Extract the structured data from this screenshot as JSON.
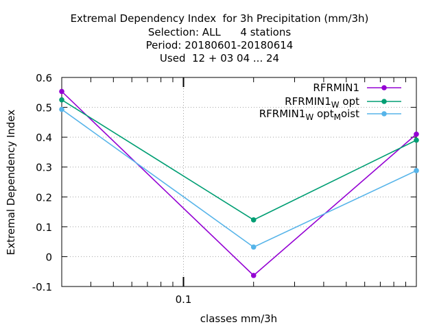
{
  "chart_data": {
    "type": "line",
    "title_lines": [
      "Extremal Dependency Index  for 3h Precipitation (mm/3h)",
      "Selection: ALL      4 stations",
      "Period: 20180601-20180614",
      "Used  12 + 03 04 ... 24"
    ],
    "xlabel": "classes mm/3h",
    "ylabel": "Extremal Dependency Index",
    "x_scale": "log",
    "x": [
      0.03,
      0.2,
      1.0
    ],
    "x_tick_labels": [
      "0.1"
    ],
    "xlim": [
      0.03,
      1.0
    ],
    "ylim": [
      -0.1,
      0.6
    ],
    "y_ticks": [
      -0.1,
      0,
      0.1,
      0.2,
      0.3,
      0.4,
      0.5,
      0.6
    ],
    "y_tick_labels": [
      "-0.1",
      "0",
      "0.1",
      "0.2",
      "0.3",
      "0.4",
      "0.5",
      "0.6"
    ],
    "grid": true,
    "legend_position": "top-right",
    "series": [
      {
        "name": "RFRMIN1",
        "legend_parts": [
          [
            "RFRMIN1",
            ""
          ]
        ],
        "color": "#9400d3",
        "values": [
          0.553,
          -0.063,
          0.41
        ]
      },
      {
        "name": "RFRMIN1_W opt",
        "legend_parts": [
          [
            "RFRMIN1",
            ""
          ],
          [
            "W",
            "sub"
          ],
          [
            " opt",
            ""
          ]
        ],
        "color": "#009e73",
        "values": [
          0.525,
          0.123,
          0.39
        ]
      },
      {
        "name": "RFRMIN1_W opt_M oist",
        "legend_parts": [
          [
            "RFRMIN1",
            ""
          ],
          [
            "W",
            "sub"
          ],
          [
            " opt",
            ""
          ],
          [
            "M",
            "sub"
          ],
          [
            "oist",
            ""
          ]
        ],
        "color": "#56b4e9",
        "values": [
          0.493,
          0.032,
          0.288
        ]
      }
    ]
  }
}
